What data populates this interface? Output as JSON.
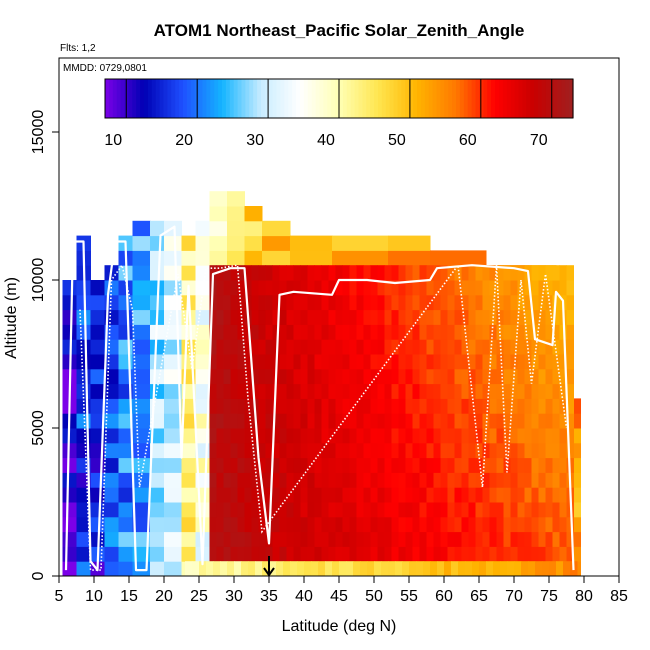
{
  "chart_data": {
    "type": "heatmap",
    "title": "ATOM1 Northeast_Pacific Solar_Zenith_Angle",
    "flights_note": "Flts: 1,2",
    "dates_note": "MMDD: 0729,0801",
    "xlabel": "Latitude (deg N)",
    "ylabel": "Altitude (m)",
    "xlim": [
      5,
      85
    ],
    "ylim": [
      0,
      17500
    ],
    "x_ticks": [
      5,
      10,
      15,
      20,
      25,
      30,
      35,
      40,
      45,
      50,
      55,
      60,
      65,
      70,
      75,
      80,
      85
    ],
    "y_ticks": [
      0,
      5000,
      10000,
      15000
    ],
    "colorbar": {
      "range": [
        7,
        73
      ],
      "ticks": [
        10,
        20,
        30,
        40,
        50,
        60,
        70
      ],
      "colors": [
        "#7b00e8",
        "#0000b4",
        "#1e50ff",
        "#14b4ff",
        "#c8ecff",
        "#ffffff",
        "#ffffb4",
        "#ffe650",
        "#ffb400",
        "#ff7800",
        "#ff0000",
        "#c80000",
        "#a02020"
      ]
    },
    "arrow_marker_x": 35,
    "columns": [
      {
        "x": [
          5.5,
          7.5
        ],
        "top": 10000,
        "value": 10
      },
      {
        "x": [
          7.5,
          9.5
        ],
        "top": 11500,
        "value": 16
      },
      {
        "x": [
          9.5,
          11.5
        ],
        "top": 10000,
        "value": 14
      },
      {
        "x": [
          11.5,
          13.5
        ],
        "top": 10500,
        "value": 18
      },
      {
        "x": [
          13.5,
          15.5
        ],
        "top": 11500,
        "value": 21
      },
      {
        "x": [
          15.5,
          18
        ],
        "top": 12000,
        "value": 22
      },
      {
        "x": [
          18,
          20
        ],
        "top": 12000,
        "value": 28
      },
      {
        "x": [
          20,
          22.5
        ],
        "top": 12000,
        "value": 32
      },
      {
        "x": [
          22.5,
          24.5
        ],
        "top": 11500,
        "value": 42
      },
      {
        "x": [
          24.5,
          26.5
        ],
        "top": 12000,
        "value": 36
      },
      {
        "x": [
          26.5,
          29
        ],
        "top": 13000,
        "value": 41
      },
      {
        "x": [
          29,
          31.5
        ],
        "top": 13000,
        "value": 45
      },
      {
        "x": [
          31.5,
          34
        ],
        "top": 12500,
        "value": 48
      },
      {
        "x": [
          34,
          38
        ],
        "top": 12000,
        "value": 50
      },
      {
        "x": [
          38,
          44
        ],
        "top": 11500,
        "value": 51
      },
      {
        "x": [
          44,
          52
        ],
        "top": 11500,
        "value": 52
      },
      {
        "x": [
          52,
          58
        ],
        "top": 11500,
        "value": 52
      },
      {
        "x": [
          58,
          66
        ],
        "top": 11000,
        "value": 53
      },
      {
        "x": [
          66,
          72
        ],
        "top": 10500,
        "value": 52
      },
      {
        "x": [
          72,
          76
        ],
        "top": 10500,
        "value": 51
      },
      {
        "x": [
          76,
          78
        ],
        "top": 8000,
        "value": 51
      },
      {
        "x": [
          78,
          79.5
        ],
        "top": 6000,
        "value": 54
      }
    ],
    "warm_block": {
      "x": [
        26.5,
        78.5
      ],
      "y": [
        500,
        10500
      ],
      "value_low_lat": 70,
      "value_high_lat": 58
    },
    "bottom_band": {
      "x": [
        23,
        79
      ],
      "y": [
        0,
        500
      ],
      "value_low_lat": 40,
      "value_high_lat": 55
    },
    "flight_track": [
      [
        6,
        200
      ],
      [
        7,
        11300
      ],
      [
        8.5,
        11300
      ],
      [
        9.5,
        500
      ],
      [
        10.5,
        200
      ],
      [
        12,
        9500
      ],
      [
        13,
        11300
      ],
      [
        14.5,
        11300
      ],
      [
        16,
        200
      ],
      [
        17.5,
        200
      ],
      [
        19.5,
        11500
      ],
      [
        21.5,
        11800
      ],
      [
        22.5,
        4000
      ],
      [
        23.5,
        9800
      ],
      [
        25.5,
        400
      ],
      [
        27,
        10200
      ],
      [
        29.5,
        10400
      ],
      [
        31.5,
        10400
      ],
      [
        33.5,
        4000
      ],
      [
        35,
        1100
      ],
      [
        36.5,
        9500
      ],
      [
        38.5,
        9600
      ],
      [
        44,
        9500
      ],
      [
        45,
        10000
      ],
      [
        49,
        10000
      ],
      [
        53,
        9900
      ],
      [
        58,
        10000
      ],
      [
        59,
        10400
      ],
      [
        64,
        10500
      ],
      [
        70,
        10400
      ],
      [
        72,
        10300
      ],
      [
        73,
        8000
      ],
      [
        75.5,
        7800
      ],
      [
        76,
        9600
      ],
      [
        77,
        9300
      ],
      [
        78.5,
        200
      ]
    ],
    "flight_track_2": [
      [
        8,
        9000
      ],
      [
        9.5,
        200
      ],
      [
        11,
        200
      ],
      [
        12.5,
        10000
      ],
      [
        14,
        10500
      ],
      [
        15.5,
        9000
      ],
      [
        16.5,
        3000
      ],
      [
        22,
        10200
      ],
      [
        24,
        7000
      ],
      [
        26,
        10400
      ],
      [
        28,
        10400
      ],
      [
        30.5,
        10500
      ],
      [
        32,
        6000
      ],
      [
        34,
        1500
      ],
      [
        62,
        10500
      ],
      [
        65.5,
        3000
      ],
      [
        67.5,
        10500
      ],
      [
        69,
        3500
      ],
      [
        71,
        10000
      ],
      [
        72.5,
        6500
      ],
      [
        74.5,
        10200
      ],
      [
        77.5,
        5000
      ]
    ]
  }
}
